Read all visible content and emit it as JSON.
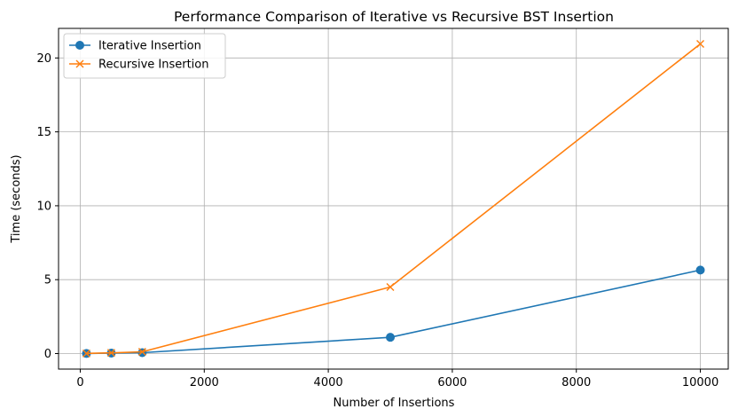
{
  "chart_data": {
    "type": "line",
    "title": "Performance Comparison of Iterative vs Recursive BST Insertion",
    "xlabel": "Number of Insertions",
    "ylabel": "Time (seconds)",
    "x": [
      100,
      500,
      1000,
      5000,
      10000
    ],
    "xlim": [
      -350,
      10450
    ],
    "ylim": [
      -1.05,
      22.0
    ],
    "xticks": [
      0,
      2000,
      4000,
      6000,
      8000,
      10000
    ],
    "yticks": [
      0,
      5,
      10,
      15,
      20
    ],
    "xtick_labels": [
      "0",
      "2000",
      "4000",
      "6000",
      "8000",
      "10000"
    ],
    "ytick_labels": [
      "0",
      "5",
      "10",
      "15",
      "20"
    ],
    "grid": true,
    "legend_position": "upper-left",
    "series": [
      {
        "name": "Iterative Insertion",
        "color": "#1f77b4",
        "marker": "circle",
        "values": [
          0.005,
          0.03,
          0.06,
          1.1,
          5.65
        ]
      },
      {
        "name": "Recursive Insertion",
        "color": "#ff7f0e",
        "marker": "x",
        "values": [
          0.01,
          0.05,
          0.12,
          4.5,
          20.95
        ]
      }
    ]
  }
}
